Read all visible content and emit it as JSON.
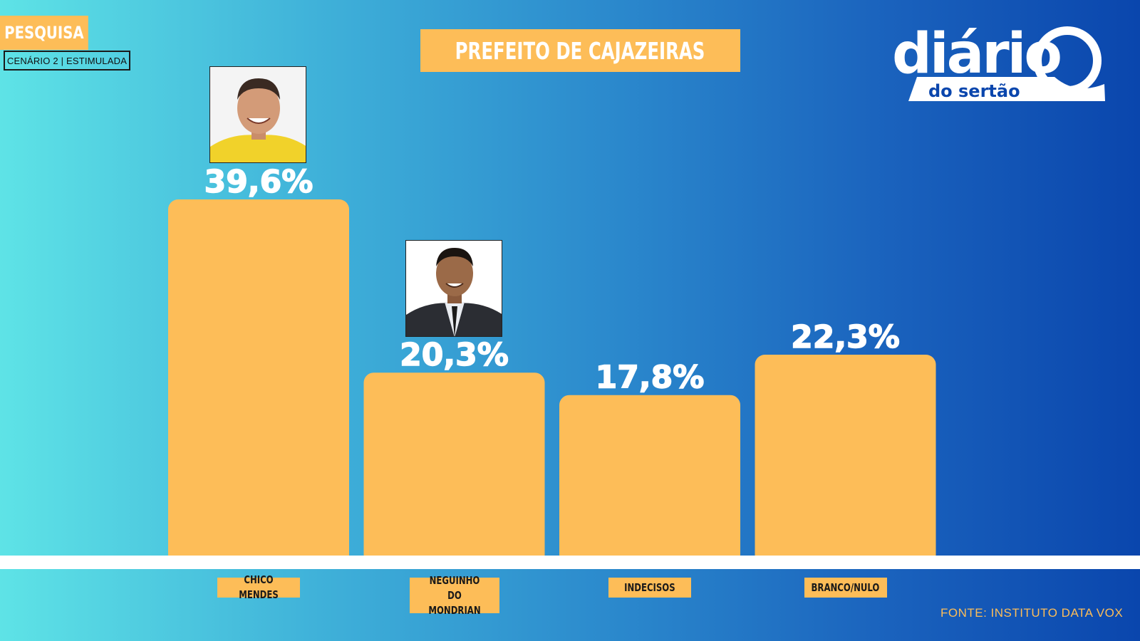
{
  "header": {
    "tag": "PESQUISA",
    "scenario": "CENÁRIO 2 | ESTIMULADA",
    "title": "PREFEITO DE CAJAZEIRAS"
  },
  "logo": {
    "line1": "diário",
    "line2": "do sertão"
  },
  "footer": {
    "source": "FONTE: INSTITUTO DATA VOX"
  },
  "colors": {
    "bar": "#fdbd58",
    "text": "#ffffff",
    "label_text": "#1a1a1a"
  },
  "chart_data": {
    "type": "bar",
    "title": "PREFEITO DE CAJAZEIRAS",
    "categories": [
      "CHICO MENDES",
      "NEGUINHO DO MONDRIAN",
      "INDECISOS",
      "BRANCO/NULO"
    ],
    "category_label_lines": [
      [
        "CHICO MENDES"
      ],
      [
        "NEGUINHO DO",
        "MONDRIAN"
      ],
      [
        "INDECISOS"
      ],
      [
        "BRANCO/NULO"
      ]
    ],
    "values": [
      39.6,
      20.3,
      17.8,
      22.3
    ],
    "value_labels": [
      "39,6%",
      "20,3%",
      "17,8%",
      "22,3%"
    ],
    "photos": [
      "candidate-photo",
      "candidate-photo",
      null,
      null
    ],
    "unit": "%",
    "grid": false,
    "legend": "none"
  }
}
